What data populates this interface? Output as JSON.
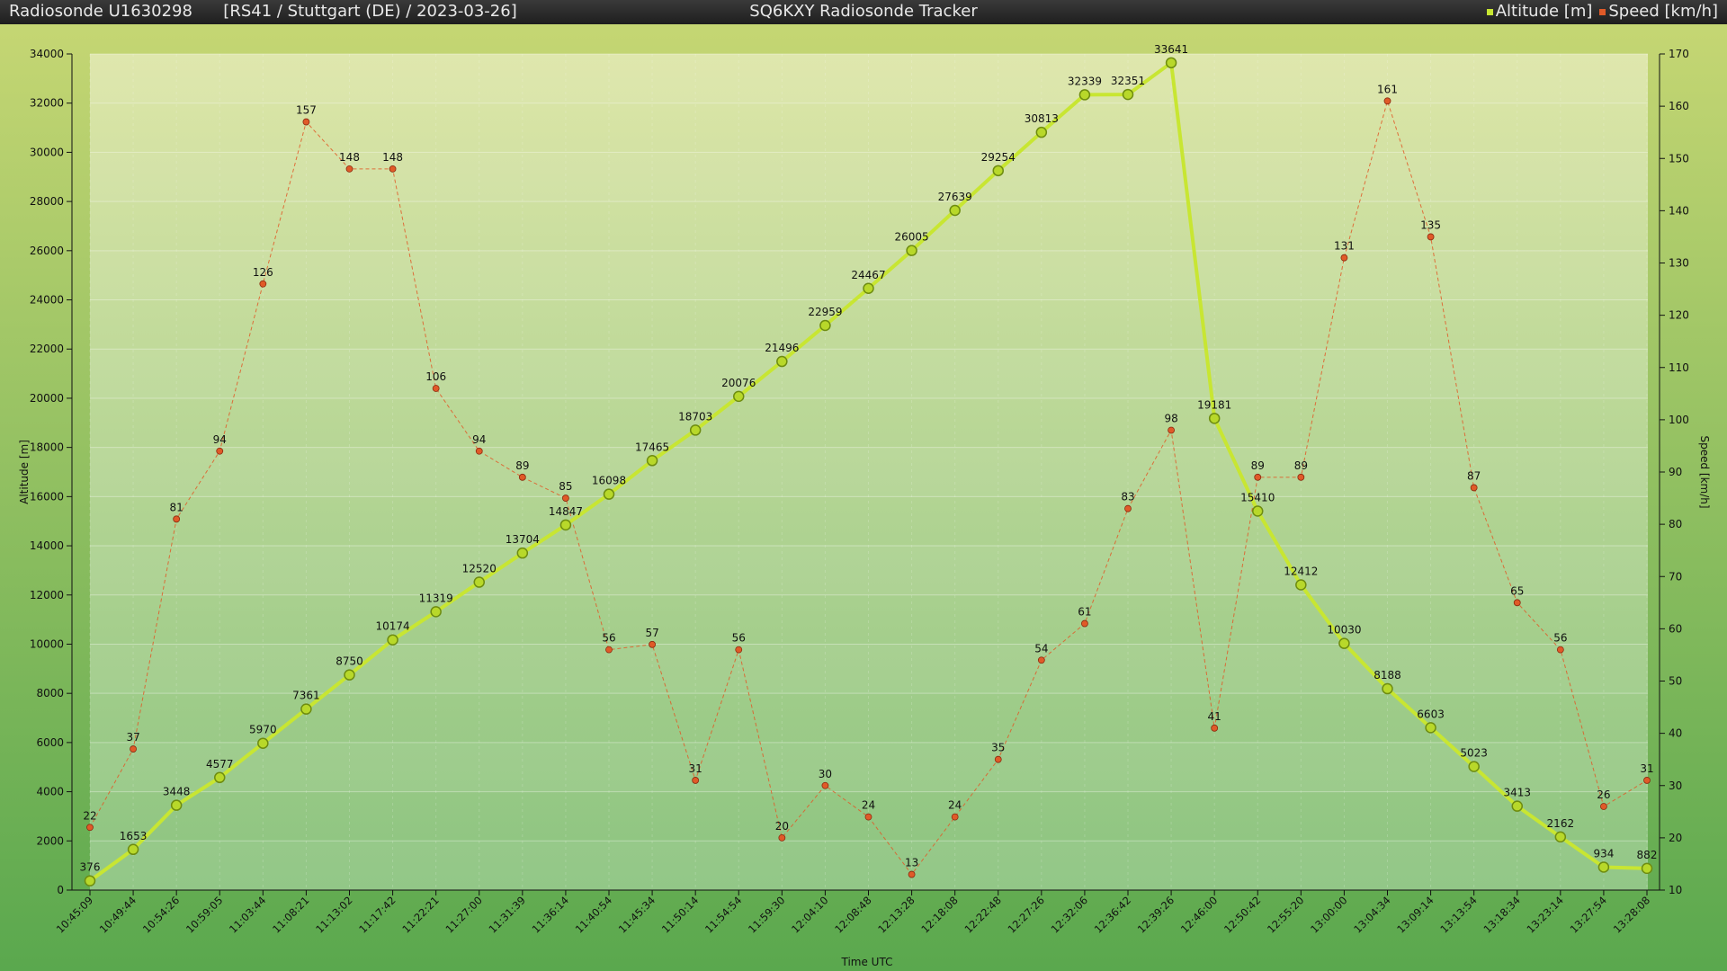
{
  "header": {
    "sonde": "Radiosonde U1630298",
    "info": "[RS41 / Stuttgart (DE) / 2023-03-26]",
    "title": "SQ6KXY Radiosonde Tracker",
    "legend_altitude": "Altitude [m]",
    "legend_speed": "Speed [km/h]"
  },
  "colors": {
    "altitude": "#c8e632",
    "speed": "#e05a28",
    "bg_top": "#dde6a8",
    "bg_bottom": "#8cc480",
    "frame_top": "#c5d673",
    "frame_bottom": "#5aa84e"
  },
  "chart_data": {
    "type": "line",
    "xlabel": "Time UTC",
    "ylabel": "Altitude [m]",
    "y2label": "Speed [km/h]",
    "ylim": [
      0,
      34000
    ],
    "y2lim": [
      10,
      170
    ],
    "yticks": [
      0,
      2000,
      4000,
      6000,
      8000,
      10000,
      12000,
      14000,
      16000,
      18000,
      20000,
      22000,
      24000,
      26000,
      28000,
      30000,
      32000,
      34000
    ],
    "y2ticks": [
      10,
      20,
      30,
      40,
      50,
      60,
      70,
      80,
      90,
      100,
      110,
      120,
      130,
      140,
      150,
      160,
      170
    ],
    "categories": [
      "10:45:09",
      "10:49:44",
      "10:54:26",
      "10:59:05",
      "11:03:44",
      "11:08:21",
      "11:13:02",
      "11:17:42",
      "11:22:21",
      "11:27:00",
      "11:31:39",
      "11:36:14",
      "11:40:54",
      "11:45:34",
      "11:50:14",
      "11:54:54",
      "11:59:30",
      "12:04:10",
      "12:08:48",
      "12:13:28",
      "12:18:08",
      "12:22:48",
      "12:27:26",
      "12:32:06",
      "12:36:42",
      "12:39:26",
      "12:46:00",
      "12:50:42",
      "12:55:20",
      "13:00:00",
      "13:04:34",
      "13:09:14",
      "13:13:54",
      "13:18:34",
      "13:23:14",
      "13:27:54",
      "13:28:08"
    ],
    "series": [
      {
        "name": "Altitude [m]",
        "axis": "left",
        "values": [
          376,
          1653,
          3448,
          4577,
          5970,
          7361,
          8750,
          10174,
          11319,
          12520,
          13704,
          14847,
          16098,
          17465,
          18703,
          20076,
          21496,
          22959,
          24467,
          26005,
          27639,
          29254,
          30813,
          32339,
          32351,
          33641,
          19181,
          15410,
          12412,
          10030,
          8188,
          6603,
          5023,
          3413,
          2162,
          934,
          882
        ]
      },
      {
        "name": "Speed [km/h]",
        "axis": "right",
        "values": [
          22,
          37,
          81,
          94,
          126,
          157,
          148,
          148,
          106,
          94,
          89,
          85,
          56,
          57,
          31,
          56,
          20,
          30,
          24,
          13,
          24,
          35,
          54,
          61,
          83,
          98,
          41,
          89,
          89,
          131,
          161,
          135,
          87,
          65,
          56,
          26,
          31
        ]
      }
    ]
  }
}
